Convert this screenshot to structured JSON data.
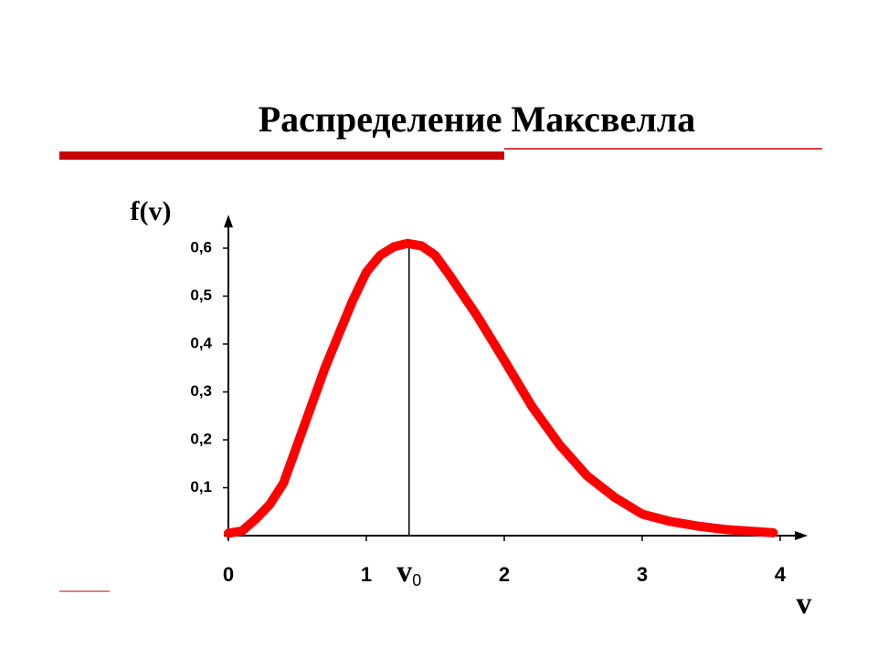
{
  "slide_title": "Распределение Максвелла",
  "chart_data": {
    "type": "line",
    "x_label": "v",
    "y_label": "f(v)",
    "x": [
      0,
      0.1,
      0.2,
      0.3,
      0.4,
      0.5,
      0.6,
      0.7,
      0.8,
      0.9,
      1.0,
      1.1,
      1.2,
      1.3,
      1.4,
      1.5,
      1.6,
      1.8,
      2.0,
      2.2,
      2.4,
      2.6,
      2.8,
      3.0,
      3.2,
      3.4,
      3.6,
      3.8,
      3.95
    ],
    "values": [
      0.005,
      0.01,
      0.035,
      0.065,
      0.11,
      0.19,
      0.27,
      0.35,
      0.42,
      0.49,
      0.55,
      0.585,
      0.603,
      0.61,
      0.605,
      0.585,
      0.545,
      0.46,
      0.366,
      0.27,
      0.19,
      0.125,
      0.08,
      0.045,
      0.03,
      0.02,
      0.013,
      0.009,
      0.006
    ],
    "color": "#ff0000",
    "xlim": [
      0,
      4.2
    ],
    "ylim": [
      0,
      0.67
    ],
    "xticks": [
      0,
      1,
      2,
      3,
      4
    ],
    "yticks": [
      {
        "value": 0.1,
        "label": "0,1"
      },
      {
        "value": 0.2,
        "label": "0,2"
      },
      {
        "value": 0.3,
        "label": "0,3"
      },
      {
        "value": 0.4,
        "label": "0,4"
      },
      {
        "value": 0.5,
        "label": "0,5"
      },
      {
        "value": 0.6,
        "label": "0,6"
      }
    ],
    "peak_marker": {
      "x": 1.31,
      "label": "v",
      "subscript": "0"
    }
  }
}
